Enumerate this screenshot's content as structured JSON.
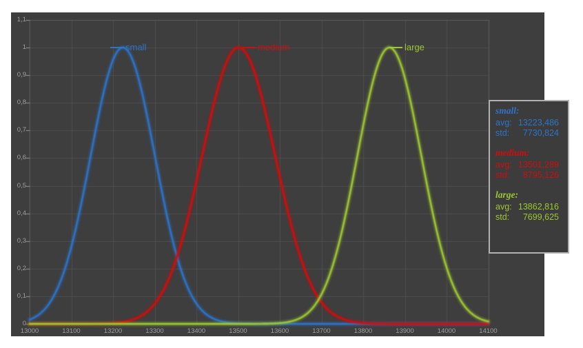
{
  "page": {
    "background": "#ffffff"
  },
  "chart": {
    "background": "#3E3E3E",
    "grid_color": "#4E4E4E",
    "plot_border_color": "#5E5E5E",
    "tick_mark_color": "#9A9A9A",
    "axis_label_color": "#A0A0A0",
    "x_ticks": [
      "13000",
      "13100",
      "13200",
      "13300",
      "13400",
      "13500",
      "13600",
      "13700",
      "13800",
      "13900",
      "14000",
      "14100"
    ],
    "y_ticks": [
      "1,1",
      "1",
      "0,9",
      "0,8",
      "0,7",
      "0,6",
      "0,5",
      "0,4",
      "0,3",
      "0,2",
      "0,1",
      "0"
    ],
    "legend_items": [
      {
        "label": "small",
        "color": "#2E74C8",
        "swatch": "line"
      },
      {
        "label": "medium",
        "color": "#D00E0E",
        "swatch": "line"
      },
      {
        "label": "large",
        "color": "#9FC733",
        "swatch": "line"
      }
    ]
  },
  "chart_data": {
    "type": "line",
    "title": "",
    "xlabel": "",
    "ylabel": "",
    "x_range": [
      13000,
      14100
    ],
    "y_range": [
      0,
      1.1
    ],
    "x_tick_step": 100,
    "y_tick_step": 0.1,
    "grid": true,
    "legend_position": "top-inside",
    "series": [
      {
        "name": "small",
        "color": "#2E74C8",
        "shape": "gaussian",
        "mean": 13223.486,
        "std_shown": 7730.824,
        "sigma": 77.30824,
        "peak": 1.0
      },
      {
        "name": "medium",
        "color": "#D00E0E",
        "shape": "gaussian",
        "mean": 13501.289,
        "std_shown": 8795.126,
        "sigma": 87.95126,
        "peak": 1.0
      },
      {
        "name": "large",
        "color": "#9FC733",
        "shape": "gaussian",
        "mean": 13862.816,
        "std_shown": 7699.625,
        "sigma": 76.99625,
        "peak": 1.0
      }
    ]
  },
  "stats_box": {
    "background": "#3C3C3C",
    "border_color": "#B2B2B2",
    "groups": [
      {
        "name": "small:",
        "color": "#2E74C8",
        "rows": [
          {
            "label": "avg:",
            "value": "13223,486"
          },
          {
            "label": "std:",
            "value": "7730,824"
          }
        ]
      },
      {
        "name": "medium:",
        "color": "#D00E0E",
        "rows": [
          {
            "label": "avg:",
            "value": "13501,289"
          },
          {
            "label": "std:",
            "value": "8795,126"
          }
        ]
      },
      {
        "name": "large:",
        "color": "#9FC733",
        "rows": [
          {
            "label": "avg:",
            "value": "13862,816"
          },
          {
            "label": "std:",
            "value": "7699,625"
          }
        ]
      }
    ]
  }
}
